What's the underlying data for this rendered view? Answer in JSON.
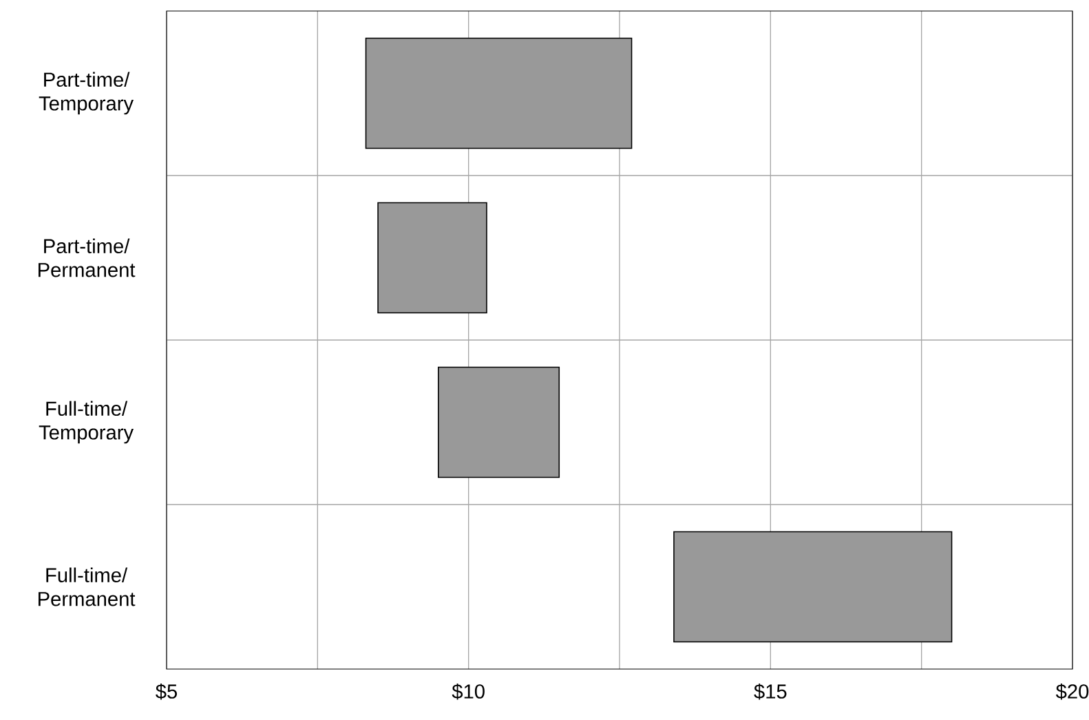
{
  "chart_data": {
    "type": "bar",
    "orientation": "horizontal",
    "categories": [
      "Part-time/ Temporary",
      "Part-time/ Permanent",
      "Full-time/ Temporary",
      "Full-time/ Permanent"
    ],
    "base": [
      8.3,
      8.5,
      9.5,
      13.4
    ],
    "values": [
      4.4,
      1.8,
      2.0,
      4.6
    ],
    "color": "#999999",
    "xlim": [
      5,
      20
    ],
    "xticks": [
      {
        "value": 5,
        "label": "$5"
      },
      {
        "value": 7.5,
        "label": null
      },
      {
        "value": 10,
        "label": "$10"
      },
      {
        "value": 12.5,
        "label": null
      },
      {
        "value": 15,
        "label": "$15"
      },
      {
        "value": 17.5,
        "label": null
      },
      {
        "value": 20,
        "label": "$20"
      }
    ],
    "grid": true
  }
}
